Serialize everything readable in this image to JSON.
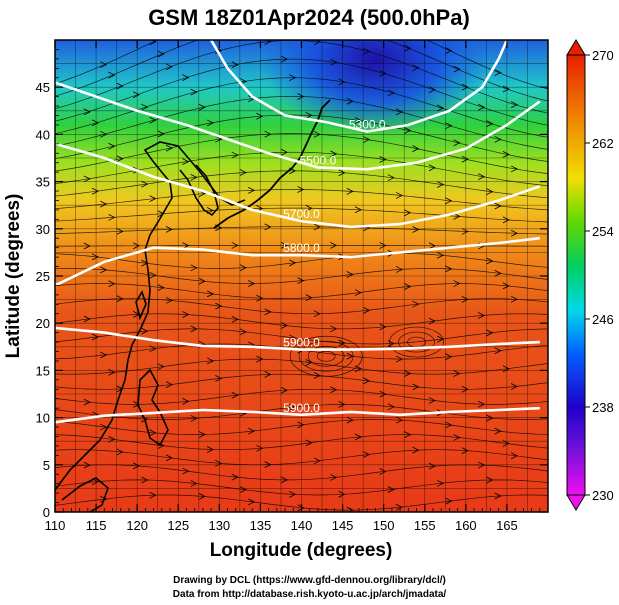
{
  "chart_data": {
    "type": "heatmap",
    "title": "GSM 18Z01Apr2024 (500.0hPa)",
    "xlabel": "Longitude (degrees)",
    "ylabel": "Latitude  (degrees)",
    "xlim": [
      110,
      170
    ],
    "ylim": [
      0,
      50
    ],
    "xticks": [
      110,
      115,
      120,
      125,
      130,
      135,
      140,
      145,
      150,
      155,
      160,
      165
    ],
    "yticks": [
      0,
      5,
      10,
      15,
      20,
      25,
      30,
      35,
      40,
      45
    ],
    "colorbar": {
      "ticks": [
        230,
        238,
        246,
        254,
        262,
        270
      ],
      "range": [
        230,
        270
      ],
      "colors": [
        "#ee10ee",
        "#3000cc",
        "#0040ff",
        "#00d8e8",
        "#00d040",
        "#90e000",
        "#f0e000",
        "#f08000",
        "#e82000"
      ]
    },
    "contours": [
      {
        "label": "5300.0",
        "points": [
          [
            129,
            50
          ],
          [
            131,
            47
          ],
          [
            134,
            44
          ],
          [
            138,
            42
          ],
          [
            143,
            41.3
          ],
          [
            148,
            40.3
          ],
          [
            153,
            41
          ],
          [
            158,
            42.5
          ],
          [
            162,
            45
          ],
          [
            164,
            48
          ],
          [
            165,
            50
          ]
        ]
      },
      {
        "label": "5500.0",
        "points": [
          [
            110,
            45.5
          ],
          [
            115,
            44
          ],
          [
            120,
            42.5
          ],
          [
            126,
            41
          ],
          [
            131,
            39.5
          ],
          [
            136,
            38
          ],
          [
            142,
            36.5
          ],
          [
            148,
            36.3
          ],
          [
            154,
            37
          ],
          [
            160,
            38.5
          ],
          [
            165,
            41
          ],
          [
            169,
            43.5
          ]
        ]
      },
      {
        "label": "5700.0",
        "points": [
          [
            110,
            39
          ],
          [
            116,
            37.5
          ],
          [
            122,
            35.5
          ],
          [
            128,
            34
          ],
          [
            134,
            32
          ],
          [
            140,
            30.8
          ],
          [
            146,
            30.2
          ],
          [
            152,
            30.5
          ],
          [
            158,
            31.5
          ],
          [
            164,
            33
          ],
          [
            169,
            34.5
          ]
        ]
      },
      {
        "label": "5800.0",
        "points": [
          [
            110,
            24
          ],
          [
            116,
            26.5
          ],
          [
            122,
            28
          ],
          [
            128,
            27.8
          ],
          [
            134,
            27.2
          ],
          [
            140,
            27.2
          ],
          [
            146,
            27
          ],
          [
            152,
            27.5
          ],
          [
            158,
            28
          ],
          [
            164,
            28.5
          ],
          [
            169,
            29
          ]
        ]
      },
      {
        "label": "5900.0",
        "points": [
          [
            110,
            19.5
          ],
          [
            116,
            19
          ],
          [
            122,
            18.2
          ],
          [
            128,
            17.6
          ],
          [
            134,
            17.5
          ],
          [
            140,
            17.2
          ],
          [
            146,
            17.2
          ],
          [
            152,
            17.3
          ],
          [
            158,
            17.5
          ],
          [
            164,
            17.8
          ],
          [
            169,
            18
          ]
        ]
      },
      {
        "label": "5900.0",
        "points": [
          [
            110,
            9.5
          ],
          [
            116,
            10.2
          ],
          [
            122,
            10.5
          ],
          [
            128,
            10.8
          ],
          [
            134,
            10.6
          ],
          [
            140,
            10.3
          ],
          [
            146,
            10.6
          ],
          [
            152,
            10.3
          ],
          [
            158,
            10.6
          ],
          [
            164,
            10.8
          ],
          [
            169,
            11
          ]
        ]
      }
    ]
  },
  "footer": {
    "credit_line1": "Drawing by DCL (https://www.gfd-dennou.org/library/dcl/)",
    "credit_line2": "Data from http://database.rish.kyoto-u.ac.jp/arch/jmadata/"
  }
}
